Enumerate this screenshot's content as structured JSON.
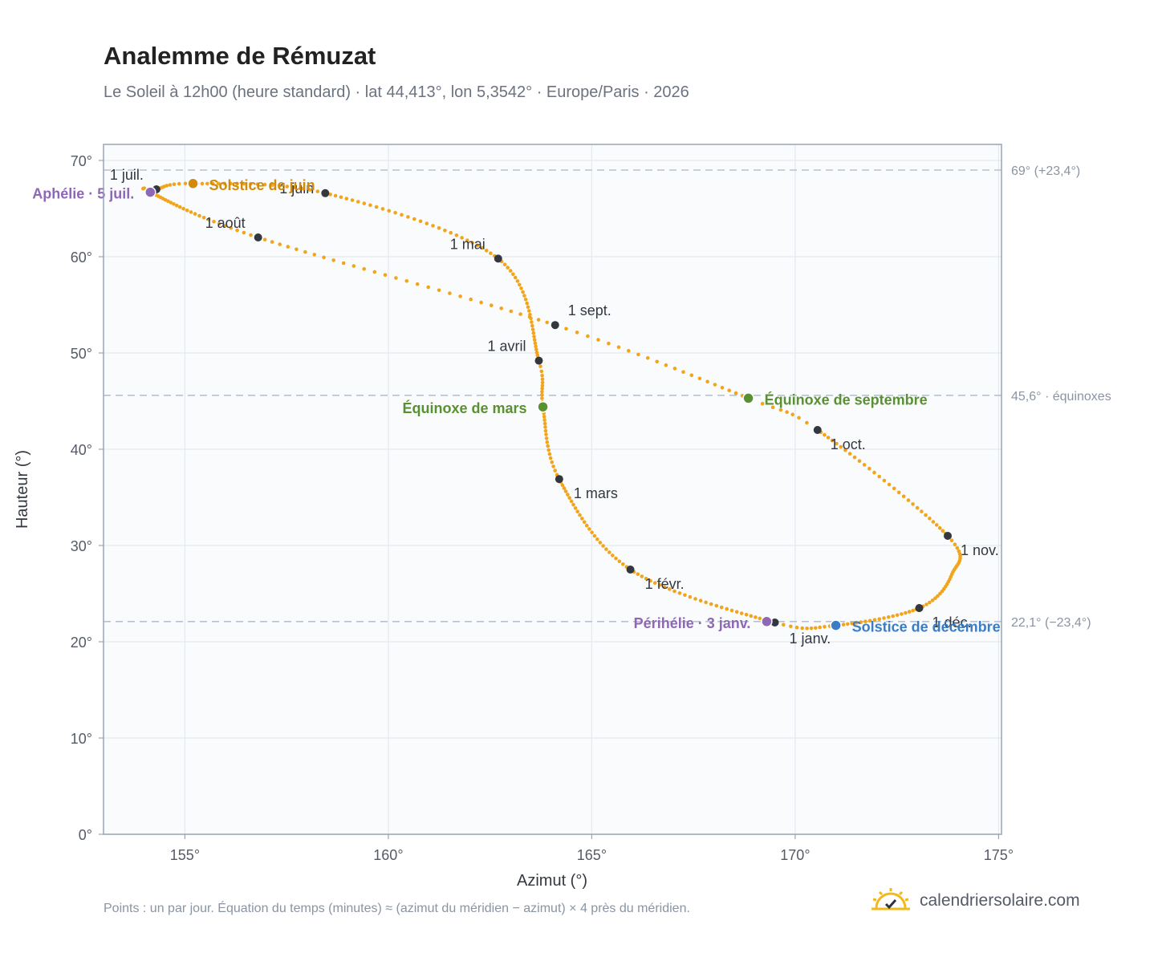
{
  "title": "Analemme de Rémuzat",
  "subtitle": "Le Soleil à 12h00 (heure standard) · lat 44,413°, lon 5,3542° · Europe/Paris · 2026",
  "footnote": "Points : un par jour. Équation du temps (minutes) ≈ (azimut du méridien − azimut) × 4 près du méridien.",
  "brand": {
    "name": "calendriersolaire.com",
    "icon": "sun-check-icon"
  },
  "colors": {
    "curve": "#f2a51c",
    "month_marker": "#333840",
    "solstice_june": "#d18a0c",
    "solstice_december": "#3b7dc4",
    "equinox": "#5a9130",
    "apsis": "#8e68b5",
    "reference_line": "#b8c2cf",
    "plot_bg": "#f9fbfd",
    "frame": "#9aa5b4"
  },
  "chart_data": {
    "type": "scatter",
    "xlabel": "Azimut (°)",
    "ylabel": "Hauteur (°)",
    "xlim": [
      153,
      175
    ],
    "ylim": [
      0,
      70
    ],
    "xticks": [
      "155°",
      "160°",
      "165°",
      "170°",
      "175°"
    ],
    "xtick_values": [
      155,
      160,
      165,
      170,
      175
    ],
    "yticks": [
      "0°",
      "10°",
      "20°",
      "30°",
      "40°",
      "50°",
      "60°",
      "70°"
    ],
    "ytick_values": [
      0,
      10,
      20,
      30,
      40,
      50,
      60,
      70
    ],
    "grid": true,
    "reference_lines": [
      {
        "y": 69.0,
        "label": "69° (+23,4°)"
      },
      {
        "y": 45.6,
        "label": "45,6° · équinoxes"
      },
      {
        "y": 22.1,
        "label": "22,1° (−23,4°)"
      }
    ],
    "daily_points_note": "one point per day, 2026",
    "months": [
      {
        "label": "1 janv.",
        "azimuth": 169.5,
        "altitude": 22.0
      },
      {
        "label": "1 févr.",
        "azimuth": 165.95,
        "altitude": 27.5
      },
      {
        "label": "1 mars",
        "azimuth": 164.2,
        "altitude": 36.9
      },
      {
        "label": "1 avril",
        "azimuth": 163.7,
        "altitude": 49.2
      },
      {
        "label": "1 mai",
        "azimuth": 162.7,
        "altitude": 59.8
      },
      {
        "label": "1 juin",
        "azimuth": 158.45,
        "altitude": 66.6
      },
      {
        "label": "1 juil.",
        "azimuth": 154.3,
        "altitude": 67.0
      },
      {
        "label": "1 août",
        "azimuth": 156.8,
        "altitude": 62.0
      },
      {
        "label": "1 sept.",
        "azimuth": 164.1,
        "altitude": 52.9
      },
      {
        "label": "1 oct.",
        "azimuth": 170.55,
        "altitude": 42.0
      },
      {
        "label": "1 nov.",
        "azimuth": 173.75,
        "altitude": 31.0
      },
      {
        "label": "1 déc.",
        "azimuth": 173.05,
        "altitude": 23.5
      }
    ],
    "special_points": [
      {
        "label": "Solstice de juin",
        "azimuth": 155.2,
        "altitude": 67.6,
        "kind": "solstice_june"
      },
      {
        "label": "Solstice de décembre",
        "azimuth": 171.0,
        "altitude": 21.7,
        "kind": "solstice_december"
      },
      {
        "label": "Équinoxe de mars",
        "azimuth": 163.8,
        "altitude": 44.4,
        "kind": "equinox"
      },
      {
        "label": "Équinoxe de septembre",
        "azimuth": 168.85,
        "altitude": 45.3,
        "kind": "equinox"
      },
      {
        "label": "Aphélie · 5 juil.",
        "azimuth": 154.15,
        "altitude": 66.7,
        "kind": "apsis"
      },
      {
        "label": "Périhélie · 3 janv.",
        "azimuth": 169.3,
        "altitude": 22.1,
        "kind": "apsis"
      }
    ]
  }
}
